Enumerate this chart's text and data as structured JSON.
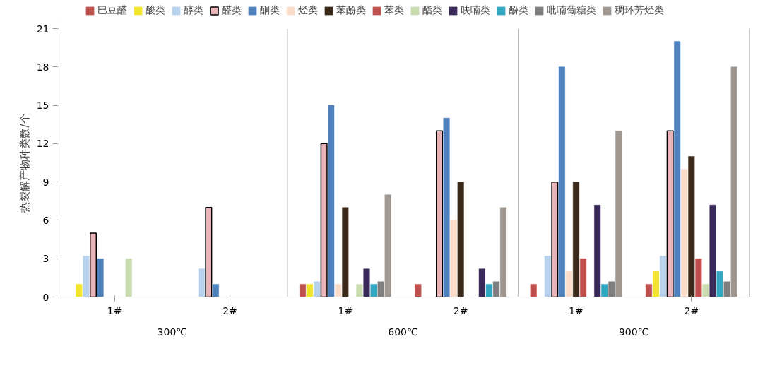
{
  "chart_data": {
    "type": "bar",
    "ylabel": "热裂解产物种类数/个",
    "categories": [
      "1#",
      "2#",
      "1#",
      "2#",
      "1#",
      "2#"
    ],
    "annotations": [
      "300℃",
      "600℃",
      "900℃"
    ],
    "ylim": [
      0,
      21
    ],
    "yticks": [
      0,
      3,
      6,
      9,
      12,
      15,
      18,
      21
    ],
    "grid": false,
    "legend": "top",
    "series": [
      {
        "name": "巴豆醛",
        "color": "#c0504d",
        "values": [
          0,
          0,
          1,
          1,
          1,
          1
        ]
      },
      {
        "name": "酸类",
        "color": "#f2e52c",
        "values": [
          1,
          0,
          1,
          0,
          0,
          2
        ]
      },
      {
        "name": "醇类",
        "color": "#b8d1ec",
        "values": [
          3.2,
          2.2,
          1.2,
          0,
          3.2,
          3.2
        ]
      },
      {
        "name": "醛类",
        "color": "#e8b4b8",
        "values": [
          5,
          7,
          12,
          13,
          9,
          13
        ]
      },
      {
        "name": "酮类",
        "color": "#4f81bd",
        "values": [
          3,
          1,
          15,
          14,
          18,
          20
        ]
      },
      {
        "name": "烃类",
        "color": "#fbdcc8",
        "values": [
          0,
          0,
          1,
          6,
          2,
          10
        ]
      },
      {
        "name": "苯酚类",
        "color": "#3b2a1a",
        "values": [
          0,
          0,
          7,
          9,
          9,
          11
        ]
      },
      {
        "name": "苯类",
        "color": "#c0504d",
        "values": [
          0,
          0,
          0,
          0,
          3,
          3
        ]
      },
      {
        "name": "酯类",
        "color": "#c9dcb0",
        "values": [
          3,
          0,
          1,
          0,
          0,
          1
        ]
      },
      {
        "name": "呋喃类",
        "color": "#3a2a5a",
        "values": [
          0,
          0,
          2.2,
          2.2,
          7.2,
          7.2
        ]
      },
      {
        "name": "酚类",
        "color": "#31a7c1",
        "values": [
          0,
          0,
          1,
          1,
          1,
          2
        ]
      },
      {
        "name": "吡喃葡糖类",
        "color": "#7f7f7f",
        "values": [
          0,
          0,
          1.2,
          1.2,
          1.2,
          1.2
        ]
      },
      {
        "name": "稠环芳烃类",
        "color": "#a09890",
        "values": [
          0,
          0,
          8,
          7,
          13,
          18
        ]
      }
    ]
  }
}
